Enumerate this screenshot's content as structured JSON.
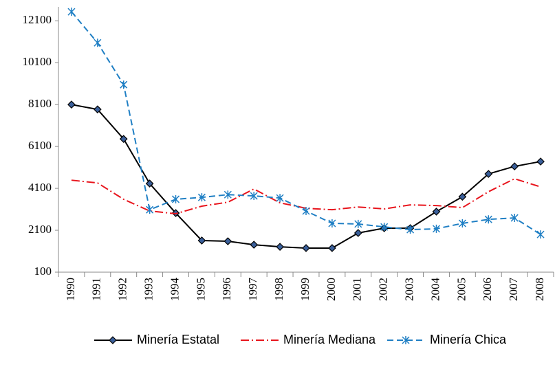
{
  "chart_data": {
    "type": "line",
    "categories": [
      "1990",
      "1991",
      "1992",
      "1993",
      "1994",
      "1995",
      "1996",
      "1997",
      "1998",
      "1999",
      "2000",
      "2001",
      "2002",
      "2003",
      "2004",
      "2005",
      "2006",
      "2007",
      "2008"
    ],
    "series": [
      {
        "name": "Minería Estatal",
        "color": "#000000",
        "marker": "diamond",
        "dash": "solid",
        "values": [
          8100,
          7870,
          6460,
          4330,
          2920,
          1610,
          1575,
          1410,
          1310,
          1250,
          1250,
          1970,
          2200,
          2200,
          2990,
          3700,
          4790,
          5150,
          5380
        ]
      },
      {
        "name": "Minería Mediana",
        "color": "#e8141c",
        "marker": "none",
        "dash": "dashdot",
        "values": [
          4490,
          4360,
          3580,
          3020,
          2890,
          3250,
          3440,
          4070,
          3410,
          3150,
          3080,
          3210,
          3120,
          3310,
          3280,
          3180,
          3940,
          4560,
          4170
        ]
      },
      {
        "name": "Minería Chica",
        "color": "#1f7fc4",
        "marker": "asterisk",
        "dash": "dashed",
        "values": [
          12530,
          11050,
          9050,
          3080,
          3580,
          3670,
          3800,
          3740,
          3640,
          3020,
          2430,
          2400,
          2260,
          2130,
          2170,
          2430,
          2620,
          2690,
          1900
        ]
      }
    ],
    "ylim": [
      100,
      12600
    ],
    "yticks": [
      100,
      2100,
      4100,
      6100,
      8100,
      10100,
      12100
    ],
    "grid": false,
    "legend": "bottom"
  }
}
